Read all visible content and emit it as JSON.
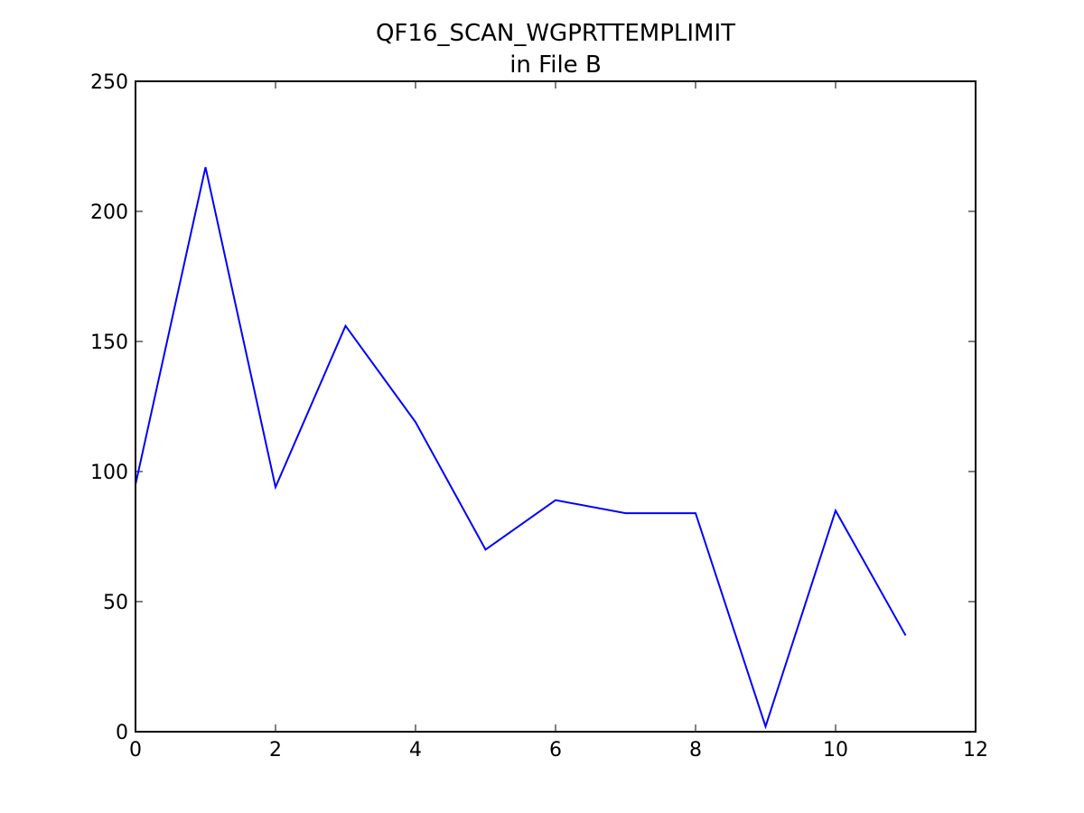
{
  "chart_data": {
    "type": "line",
    "title": "QF16_SCAN_WGPRTTEMPLIMIT",
    "subtitle": "in File B",
    "x": [
      0,
      1,
      2,
      3,
      4,
      5,
      6,
      7,
      8,
      9,
      10,
      11
    ],
    "series": [
      {
        "name": "QF16_SCAN_WGPRTTEMPLIMIT",
        "color": "#0000ff",
        "values": [
          95,
          217,
          94,
          156,
          119,
          70,
          89,
          84,
          84,
          2,
          85,
          37
        ]
      }
    ],
    "xlim": [
      0,
      12
    ],
    "xticks": [
      0,
      2,
      4,
      6,
      8,
      10,
      12
    ],
    "ylim": [
      0,
      250
    ],
    "yticks": [
      0,
      50,
      100,
      150,
      200,
      250
    ],
    "grid": false
  }
}
